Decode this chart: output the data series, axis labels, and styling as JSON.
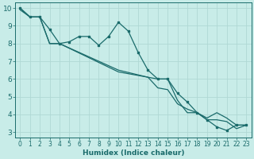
{
  "xlabel": "Humidex (Indice chaleur)",
  "bg_color": "#c8ece8",
  "grid_color": "#b0d8d4",
  "line_color": "#1a6b6b",
  "xlim": [
    -0.5,
    23.5
  ],
  "ylim": [
    2.7,
    10.3
  ],
  "xticks": [
    0,
    1,
    2,
    3,
    4,
    5,
    6,
    7,
    8,
    9,
    10,
    11,
    12,
    13,
    14,
    15,
    16,
    17,
    18,
    19,
    20,
    21,
    22,
    23
  ],
  "yticks": [
    3,
    4,
    5,
    6,
    7,
    8,
    9,
    10
  ],
  "line1_x": [
    0,
    1,
    2,
    3,
    4,
    5,
    6,
    7,
    8,
    9,
    10,
    11,
    12,
    13,
    14,
    15,
    16,
    17,
    18,
    19,
    20,
    21,
    22,
    23
  ],
  "line1_y": [
    10.0,
    9.5,
    9.5,
    8.8,
    8.0,
    8.1,
    8.4,
    8.4,
    7.9,
    8.4,
    9.2,
    8.7,
    7.5,
    6.5,
    6.0,
    6.0,
    5.2,
    4.7,
    4.1,
    3.7,
    3.3,
    3.1,
    3.4,
    3.4
  ],
  "line2_x": [
    0,
    1,
    2,
    3,
    4,
    10,
    14,
    15,
    16,
    17,
    18,
    19,
    20,
    21,
    22,
    23
  ],
  "line2_y": [
    9.9,
    9.5,
    9.5,
    8.0,
    8.0,
    6.4,
    6.0,
    6.0,
    4.8,
    4.1,
    4.1,
    3.7,
    3.7,
    3.6,
    3.2,
    3.4
  ],
  "line3_x": [
    0,
    1,
    2,
    3,
    4,
    10,
    13,
    14,
    15,
    16,
    17,
    18,
    19,
    20,
    21,
    22,
    23
  ],
  "line3_y": [
    10.0,
    9.5,
    9.5,
    8.0,
    8.0,
    6.5,
    6.1,
    5.5,
    5.4,
    4.6,
    4.3,
    4.1,
    3.8,
    4.1,
    3.8,
    3.4,
    3.4
  ]
}
